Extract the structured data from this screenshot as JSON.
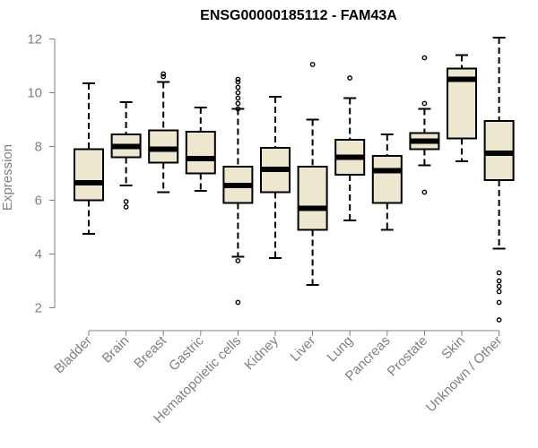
{
  "chart_data": {
    "type": "boxplot",
    "title": "ENSG00000185112 - FAM43A",
    "xlabel": "",
    "ylabel": "Expression",
    "ylim": [
      1.3,
      12.2
    ],
    "yticks": [
      2,
      4,
      6,
      8,
      10,
      12
    ],
    "categories": [
      "Bladder",
      "Brain",
      "Breast",
      "Gastric",
      "Hematopoietic cells",
      "Kidney",
      "Liver",
      "Lung",
      "Pancreas",
      "Prostate",
      "Skin",
      "Unknown / Other"
    ],
    "box_fill": "#ede7cf",
    "series": [
      {
        "name": "Bladder",
        "whisker_low": 4.75,
        "q1": 6.0,
        "median": 6.65,
        "q3": 7.9,
        "whisker_high": 10.35,
        "outliers": []
      },
      {
        "name": "Brain",
        "whisker_low": 6.55,
        "q1": 7.6,
        "median": 8.0,
        "q3": 8.45,
        "whisker_high": 9.65,
        "outliers": [
          5.95,
          5.75
        ]
      },
      {
        "name": "Breast",
        "whisker_low": 6.3,
        "q1": 7.4,
        "median": 7.9,
        "q3": 8.6,
        "whisker_high": 10.4,
        "outliers": [
          10.6,
          10.7
        ]
      },
      {
        "name": "Gastric",
        "whisker_low": 6.35,
        "q1": 7.0,
        "median": 7.55,
        "q3": 8.55,
        "whisker_high": 9.45,
        "outliers": []
      },
      {
        "name": "Hematopoietic cells",
        "whisker_low": 3.9,
        "q1": 5.9,
        "median": 6.55,
        "q3": 7.25,
        "whisker_high": 9.4,
        "outliers": [
          10.5,
          10.4,
          10.2,
          10.0,
          9.8,
          9.6,
          9.4,
          3.75,
          2.2
        ]
      },
      {
        "name": "Kidney",
        "whisker_low": 3.85,
        "q1": 6.3,
        "median": 7.15,
        "q3": 7.95,
        "whisker_high": 9.85,
        "outliers": []
      },
      {
        "name": "Liver",
        "whisker_low": 2.85,
        "q1": 4.9,
        "median": 5.7,
        "q3": 7.25,
        "whisker_high": 9.0,
        "outliers": [
          11.05
        ]
      },
      {
        "name": "Lung",
        "whisker_low": 5.25,
        "q1": 6.95,
        "median": 7.6,
        "q3": 8.25,
        "whisker_high": 9.8,
        "outliers": [
          10.55
        ]
      },
      {
        "name": "Pancreas",
        "whisker_low": 4.9,
        "q1": 5.9,
        "median": 7.1,
        "q3": 7.65,
        "whisker_high": 8.45,
        "outliers": []
      },
      {
        "name": "Prostate",
        "whisker_low": 7.3,
        "q1": 7.9,
        "median": 8.2,
        "q3": 8.5,
        "whisker_high": 9.4,
        "outliers": [
          11.3,
          9.6,
          6.3
        ]
      },
      {
        "name": "Skin",
        "whisker_low": 7.45,
        "q1": 8.3,
        "median": 10.5,
        "q3": 10.9,
        "whisker_high": 11.4,
        "outliers": []
      },
      {
        "name": "Unknown / Other",
        "whisker_low": 4.2,
        "q1": 6.75,
        "median": 7.75,
        "q3": 8.95,
        "whisker_high": 12.05,
        "outliers": [
          3.3,
          3.0,
          2.8,
          2.6,
          2.2,
          1.55
        ]
      }
    ]
  }
}
